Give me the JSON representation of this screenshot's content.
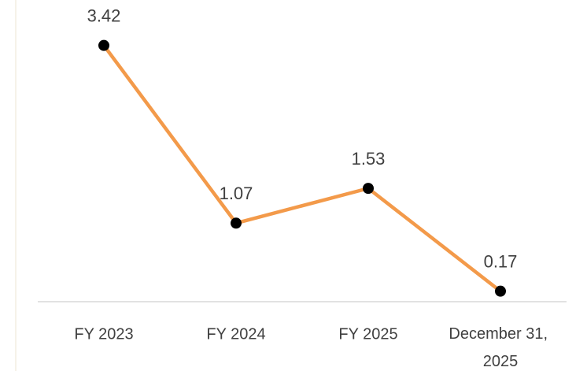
{
  "chart_data": {
    "type": "line",
    "categories": [
      "FY 2023",
      "FY 2024",
      "FY 2025",
      "December 31, 2025"
    ],
    "values": [
      3.42,
      1.07,
      1.53,
      0.17
    ],
    "color": "#f39a4a",
    "marker_color": "#000000",
    "ylim": [
      0,
      4
    ]
  }
}
